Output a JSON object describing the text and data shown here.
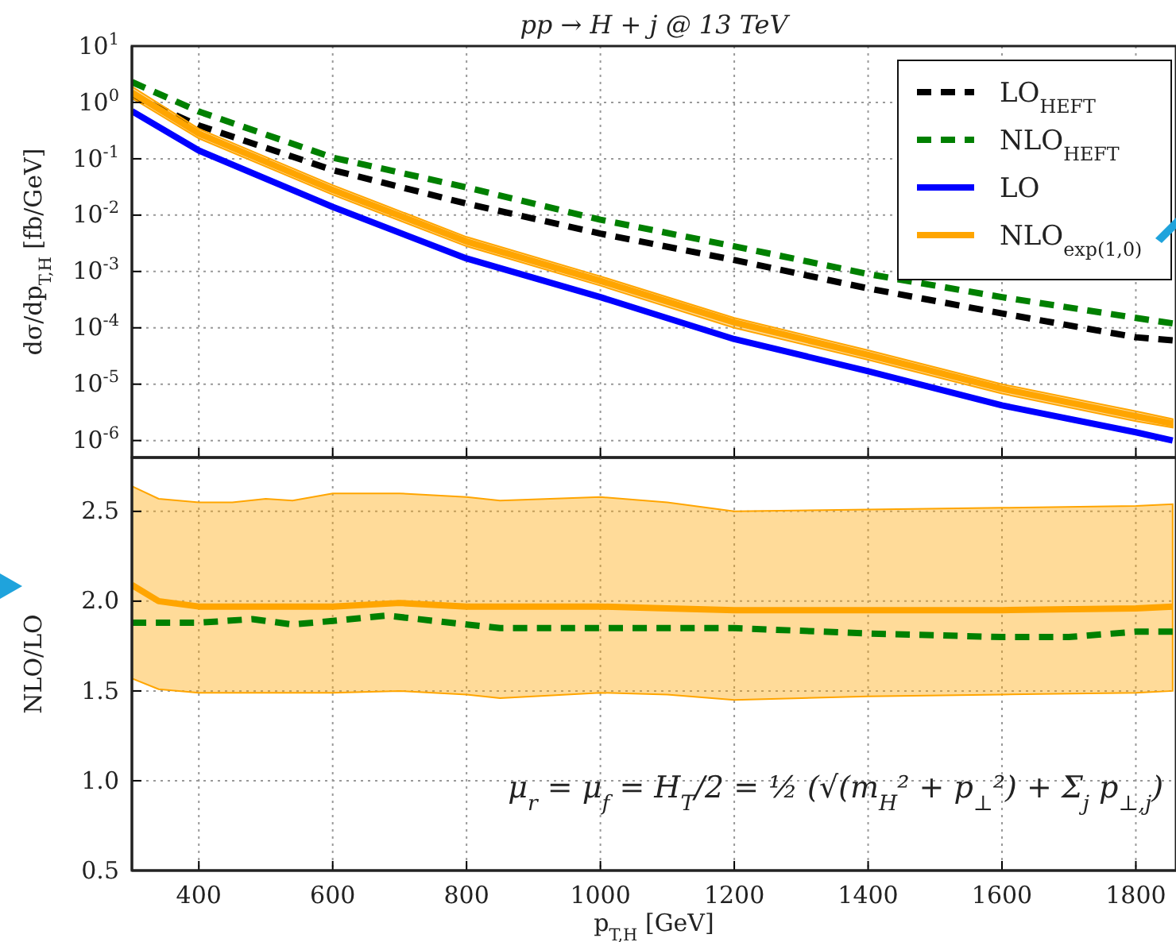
{
  "chart_data": [
    {
      "type": "line",
      "title": "pp → H + j @ 13 TeV",
      "ylabel": "dσ/dp$_{T,H}$ [fb/GeV]",
      "log": "y",
      "grid": true,
      "legend": "top right",
      "tick_labels": "y",
      "x": [
        300,
        400,
        600,
        800,
        1000,
        1200,
        1400,
        1600,
        1800,
        1855
      ],
      "xlim": [
        300,
        1860
      ],
      "xticks": [
        400,
        600,
        800,
        1000,
        1200,
        1400,
        1600,
        1800
      ],
      "ylim": [
        5e-07,
        10
      ],
      "yticks": [
        {
          "value": 10,
          "label": "10$^{1}$"
        },
        {
          "value": 1,
          "label": "10$^{0}$"
        },
        {
          "value": 0.1,
          "label": "10$^{-1}$"
        },
        {
          "value": 0.01,
          "label": "10$^{-2}$"
        },
        {
          "value": 0.001,
          "label": "10$^{-3}$"
        },
        {
          "value": 0.0001,
          "label": "10$^{-4}$"
        },
        {
          "value": 1e-05,
          "label": "10$^{-5}$"
        },
        {
          "value": 1e-06,
          "label": "10$^{-6}$"
        }
      ],
      "series": [
        {
          "name": "LO$_{HEFT}$",
          "color": "#000000",
          "line_style": "dashed",
          "values": [
            1.3,
            0.39,
            0.063,
            0.016,
            0.0047,
            0.0016,
            0.0005,
            0.00018,
            6.8e-05,
            6e-05
          ]
        },
        {
          "name": "NLO$_{HEFT}$",
          "color": "#008000",
          "line_style": "dashed",
          "values": [
            2.3,
            0.69,
            0.105,
            0.031,
            0.0083,
            0.0028,
            0.0009,
            0.00035,
            0.00015,
            0.00012
          ]
        },
        {
          "name": "LO",
          "color": "#0000ff",
          "line_style": "solid",
          "values": [
            0.7,
            0.14,
            0.014,
            0.0017,
            0.00035,
            6.3e-05,
            1.7e-05,
            4.2e-06,
            1.4e-06,
            1e-06
          ]
        },
        {
          "name": "NLO$_{exp(1,0)}$",
          "color": "#ffa500",
          "line_style": "solid",
          "values": [
            1.5,
            0.28,
            0.028,
            0.0034,
            0.00068,
            0.000125,
            3.3e-05,
            8.3e-06,
            2.7e-06,
            2e-06
          ],
          "lower": [
            1.2,
            0.23,
            0.023,
            0.0028,
            0.00056,
            0.0001,
            2.7e-05,
            6.8e-06,
            2.2e-06,
            1.7e-06
          ],
          "upper": [
            1.9,
            0.34,
            0.034,
            0.0041,
            0.00082,
            0.00015,
            4e-05,
            1e-05,
            3.3e-06,
            2.4e-06
          ]
        }
      ]
    },
    {
      "type": "line",
      "xlabel": "p$_{T,H}$ [GeV]",
      "ylabel": "NLO/LO",
      "grid": true,
      "xlim": [
        300,
        1860
      ],
      "xticks": [
        400,
        600,
        800,
        1000,
        1200,
        1400,
        1600,
        1800
      ],
      "ylim": [
        0.5,
        2.8
      ],
      "yticks": [
        {
          "value": 0.5,
          "label": "0.5"
        },
        {
          "value": 1,
          "label": "1.0"
        },
        {
          "value": 1.5,
          "label": "1.5"
        },
        {
          "value": 2,
          "label": "2.0"
        },
        {
          "value": 2.5,
          "label": "2.5"
        }
      ],
      "annotations": [
        "μ$_{r}$ = μ$_{f}$ = H$_{T}$/2 = ½ (√(m$_{H}$² + p$_{⊥}$²) + Σ$_{j}$ p$_{⊥,j}$)"
      ],
      "series": [
        {
          "color": "#ffa500",
          "line_style": "solid",
          "x": [
            300,
            340,
            400,
            450,
            500,
            540,
            600,
            700,
            800,
            850,
            1000,
            1100,
            1200,
            1400,
            1600,
            1800,
            1855
          ],
          "values": [
            2.09,
            2.0,
            1.97,
            1.97,
            1.97,
            1.97,
            1.97,
            1.99,
            1.97,
            1.97,
            1.97,
            1.96,
            1.95,
            1.95,
            1.95,
            1.96,
            1.97
          ],
          "lower": [
            1.57,
            1.51,
            1.49,
            1.49,
            1.49,
            1.49,
            1.49,
            1.5,
            1.48,
            1.46,
            1.49,
            1.48,
            1.45,
            1.47,
            1.48,
            1.49,
            1.5
          ],
          "upper": [
            2.64,
            2.57,
            2.55,
            2.55,
            2.57,
            2.56,
            2.6,
            2.6,
            2.58,
            2.56,
            2.58,
            2.55,
            2.5,
            2.51,
            2.52,
            2.53,
            2.54
          ]
        },
        {
          "color": "#008000",
          "line_style": "dashed",
          "x": [
            300,
            400,
            480,
            540,
            600,
            680,
            800,
            850,
            1000,
            1200,
            1400,
            1600,
            1700,
            1800,
            1855
          ],
          "values": [
            1.88,
            1.88,
            1.9,
            1.87,
            1.89,
            1.92,
            1.87,
            1.85,
            1.85,
            1.85,
            1.82,
            1.8,
            1.8,
            1.83,
            1.83
          ]
        }
      ]
    }
  ]
}
